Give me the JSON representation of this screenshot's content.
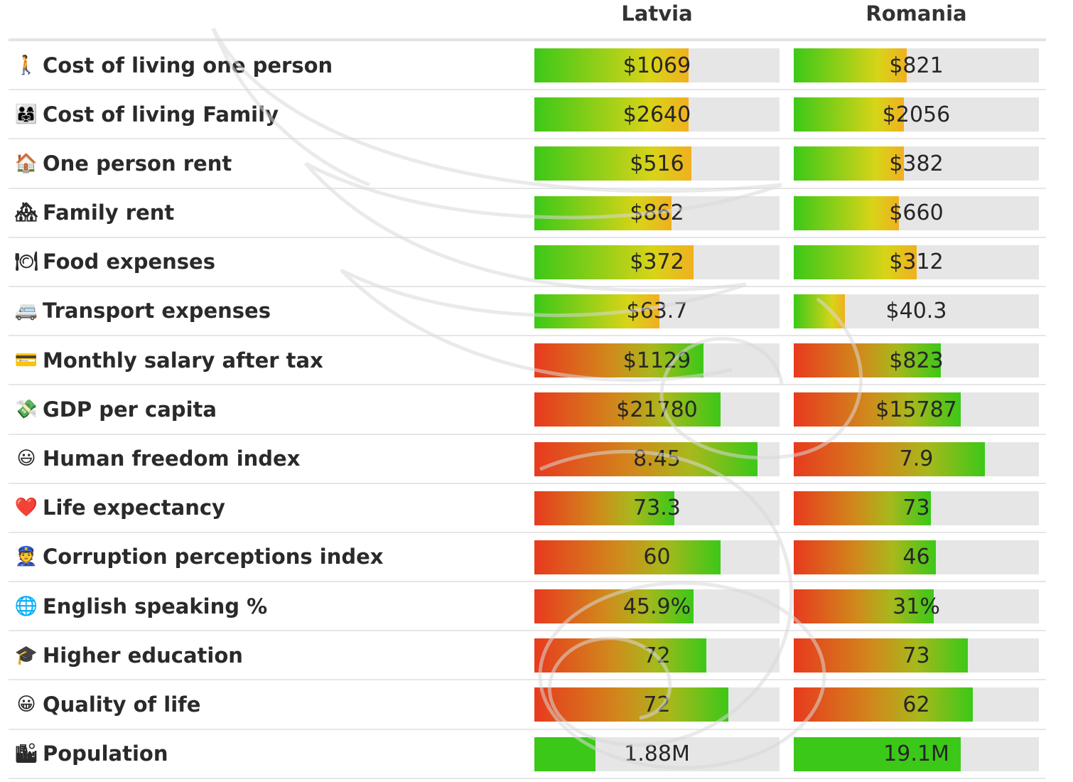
{
  "columns": [
    "Latvia",
    "Romania"
  ],
  "colors": {
    "green": "#3cc818",
    "yellow": "#d8d418",
    "orange": "#f0b020",
    "red": "#e83a1e",
    "track": "#e6e6e6"
  },
  "rows": [
    {
      "icon": "🚶",
      "icon_name": "walking-person-icon",
      "label": "Cost of living one person",
      "scheme": "cost",
      "values": [
        "$1069",
        "$821"
      ],
      "fills": [
        0.63,
        0.46
      ]
    },
    {
      "icon": "👨‍👩‍👧",
      "icon_name": "family-icon",
      "label": "Cost of living Family",
      "scheme": "cost",
      "values": [
        "$2640",
        "$2056"
      ],
      "fills": [
        0.63,
        0.45
      ]
    },
    {
      "icon": "🏠",
      "icon_name": "house-icon",
      "label": "One person rent",
      "scheme": "cost",
      "values": [
        "$516",
        "$382"
      ],
      "fills": [
        0.64,
        0.45
      ]
    },
    {
      "icon": "🏘",
      "icon_name": "houses-icon",
      "label": "Family rent",
      "scheme": "cost",
      "values": [
        "$862",
        "$660"
      ],
      "fills": [
        0.56,
        0.43
      ]
    },
    {
      "icon": "🍽",
      "icon_name": "plate-icon",
      "label": "Food expenses",
      "scheme": "cost",
      "values": [
        "$372",
        "$312"
      ],
      "fills": [
        0.65,
        0.5
      ]
    },
    {
      "icon": "🚐",
      "icon_name": "van-icon",
      "label": "Transport expenses",
      "scheme": "cost",
      "values": [
        "$63.7",
        "$40.3"
      ],
      "fills": [
        0.51,
        0.21
      ]
    },
    {
      "icon": "💳",
      "icon_name": "credit-card-icon",
      "label": "Monthly salary after tax",
      "scheme": "benefit",
      "values": [
        "$1129",
        "$823"
      ],
      "fills": [
        0.69,
        0.6
      ]
    },
    {
      "icon": "💸",
      "icon_name": "money-wings-icon",
      "label": "GDP per capita",
      "scheme": "benefit",
      "values": [
        "$21780",
        "$15787"
      ],
      "fills": [
        0.76,
        0.68
      ]
    },
    {
      "icon": "😃",
      "icon_name": "smiley-icon",
      "label": "Human freedom index",
      "scheme": "benefit",
      "values": [
        "8.45",
        "7.9"
      ],
      "fills": [
        0.91,
        0.78
      ]
    },
    {
      "icon": "❤️",
      "icon_name": "heart-icon",
      "label": "Life expectancy",
      "scheme": "benefit",
      "values": [
        "73.3",
        "73"
      ],
      "fills": [
        0.57,
        0.56
      ]
    },
    {
      "icon": "👮",
      "icon_name": "police-officer-icon",
      "label": "Corruption perceptions index",
      "scheme": "benefit",
      "values": [
        "60",
        "46"
      ],
      "fills": [
        0.76,
        0.58
      ]
    },
    {
      "icon": "🌐",
      "icon_name": "globe-icon",
      "label": "English speaking %",
      "scheme": "benefit",
      "values": [
        "45.9%",
        "31%"
      ],
      "fills": [
        0.65,
        0.57
      ]
    },
    {
      "icon": "🎓",
      "icon_name": "graduation-cap-icon",
      "label": "Higher education",
      "scheme": "benefit",
      "values": [
        "72",
        "73"
      ],
      "fills": [
        0.7,
        0.71
      ]
    },
    {
      "icon": "😀",
      "icon_name": "grinning-face-icon",
      "label": "Quality of life",
      "scheme": "benefit",
      "values": [
        "72",
        "62"
      ],
      "fills": [
        0.79,
        0.73
      ]
    },
    {
      "icon": "🏙",
      "icon_name": "cityscape-icon",
      "label": "Population",
      "scheme": "solid",
      "values": [
        "1.88M",
        "19.1M"
      ],
      "fills": [
        0.25,
        0.68
      ]
    }
  ],
  "chart_data": {
    "type": "table",
    "title": "",
    "categories": [
      "Cost of living one person",
      "Cost of living Family",
      "One person rent",
      "Family rent",
      "Food expenses",
      "Transport expenses",
      "Monthly salary after tax",
      "GDP per capita",
      "Human freedom index",
      "Life expectancy",
      "Corruption perceptions index",
      "English speaking %",
      "Higher education",
      "Quality of life",
      "Population"
    ],
    "series": [
      {
        "name": "Latvia",
        "values": [
          "$1069",
          "$2640",
          "$516",
          "$862",
          "$372",
          "$63.7",
          "$1129",
          "$21780",
          "8.45",
          "73.3",
          "60",
          "45.9%",
          "72",
          "72",
          "1.88M"
        ]
      },
      {
        "name": "Romania",
        "values": [
          "$821",
          "$2056",
          "$382",
          "$660",
          "$312",
          "$40.3",
          "$823",
          "$15787",
          "7.9",
          "73",
          "46",
          "31%",
          "73",
          "62",
          "19.1M"
        ]
      }
    ]
  }
}
